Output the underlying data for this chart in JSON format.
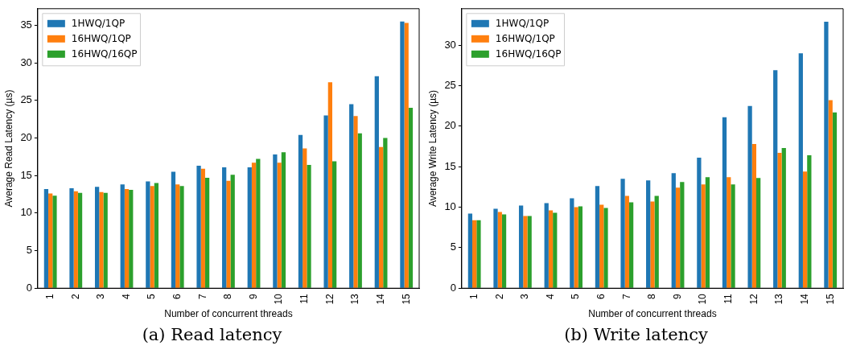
{
  "chart_data": [
    {
      "type": "bar",
      "xlabel": "Number of concurrent threads",
      "ylabel": "Average Read Latency (µs)",
      "annotations": [
        "(a) Read latency"
      ],
      "categories": [
        "1",
        "2",
        "3",
        "4",
        "5",
        "6",
        "7",
        "8",
        "9",
        "10",
        "11",
        "12",
        "13",
        "14",
        "15"
      ],
      "series": [
        {
          "name": "1HWQ/1QP",
          "color": "#1f77b4",
          "values": [
            13.2,
            13.3,
            13.5,
            13.8,
            14.2,
            15.5,
            16.3,
            16.1,
            16.1,
            17.8,
            20.4,
            23.0,
            24.5,
            28.2,
            35.5
          ]
        },
        {
          "name": "16HWQ/1QP",
          "color": "#ff7f0e",
          "values": [
            12.6,
            12.9,
            12.8,
            13.2,
            13.6,
            13.8,
            15.9,
            14.3,
            16.7,
            16.7,
            18.6,
            27.4,
            22.9,
            18.8,
            35.3
          ]
        },
        {
          "name": "16HWQ/16QP",
          "color": "#2ca02c",
          "values": [
            12.3,
            12.7,
            12.7,
            13.1,
            14.0,
            13.6,
            14.7,
            15.1,
            17.2,
            18.1,
            16.4,
            16.9,
            20.6,
            20.0,
            24.0
          ]
        }
      ],
      "ylim": [
        0,
        37.2
      ],
      "yticks": [
        0,
        5,
        10,
        15,
        20,
        25,
        30,
        35
      ],
      "legend": "top left",
      "grid": false
    },
    {
      "type": "bar",
      "xlabel": "Number of concurrent threads",
      "ylabel": "Average Write Latency (µs)",
      "annotations": [
        "(b) Write latency"
      ],
      "categories": [
        "1",
        "2",
        "3",
        "4",
        "5",
        "6",
        "7",
        "8",
        "9",
        "10",
        "11",
        "12",
        "13",
        "14",
        "15"
      ],
      "series": [
        {
          "name": "1HWQ/1QP",
          "color": "#1f77b4",
          "values": [
            9.2,
            9.8,
            10.2,
            10.5,
            11.1,
            12.6,
            13.5,
            13.3,
            14.2,
            16.1,
            21.1,
            22.5,
            26.9,
            29.0,
            32.9
          ]
        },
        {
          "name": "16HWQ/1QP",
          "color": "#ff7f0e",
          "values": [
            8.4,
            9.4,
            8.9,
            9.6,
            10.0,
            10.3,
            11.4,
            10.7,
            12.4,
            12.8,
            13.7,
            17.8,
            16.7,
            14.4,
            23.2
          ]
        },
        {
          "name": "16HWQ/16QP",
          "color": "#2ca02c",
          "values": [
            8.4,
            9.1,
            8.9,
            9.3,
            10.1,
            9.9,
            10.6,
            11.4,
            13.1,
            13.7,
            12.8,
            13.6,
            17.3,
            16.4,
            21.7
          ]
        }
      ],
      "ylim": [
        0,
        34.5
      ],
      "yticks": [
        0,
        5,
        10,
        15,
        20,
        25,
        30
      ],
      "legend": "top left",
      "grid": false
    }
  ]
}
